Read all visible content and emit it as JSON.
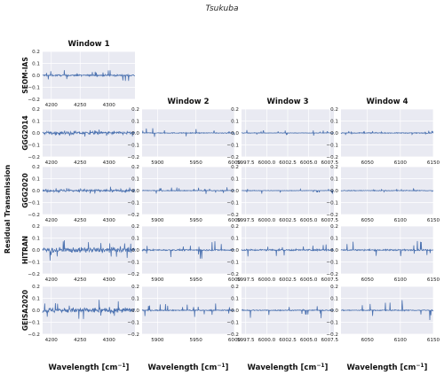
{
  "chart_data": {
    "type": "line",
    "title": "Tsukuba",
    "ylabel": "Residual Transmission",
    "xlabel": "Wavelength [cm$^{-1}$]",
    "xlabel_text": "Wavelength [cm",
    "xlabel_sup": "−1",
    "xlabel_close": "]",
    "ylim": [
      -0.2,
      0.2
    ],
    "yticks": [
      "0.2",
      "0.1",
      "0.0",
      "−0.1",
      "−0.2"
    ],
    "ytick_values": [
      0.2,
      0.1,
      0.0,
      -0.1,
      -0.2
    ],
    "grid": true,
    "series_color": "#4c72b0",
    "panel_bg": "#e9eaf2",
    "columns": [
      {
        "title": "Window 1",
        "xlim": [
          4185,
          4345
        ],
        "xticks": [
          4200,
          4250,
          4300
        ],
        "xtick_labels": [
          "4200",
          "4250",
          "4300"
        ]
      },
      {
        "title": "Window 2",
        "xlim": [
          5880,
          6000
        ],
        "xticks": [
          5900,
          5950,
          6000
        ],
        "xtick_labels": [
          "5900",
          "5950",
          "6000"
        ]
      },
      {
        "title": "Window 3",
        "xlim": [
          5997,
          6008
        ],
        "xticks": [
          5997.5,
          6000.0,
          6002.5,
          6005.0,
          6007.5
        ],
        "xtick_labels": [
          "5997.5",
          "6000.0",
          "6002.5",
          "6005.0",
          "6007.5"
        ]
      },
      {
        "title": "Window 4",
        "xlim": [
          6010,
          6150
        ],
        "xticks": [
          6050,
          6100,
          6150
        ],
        "xtick_labels": [
          "6050",
          "6100",
          "6150"
        ]
      }
    ],
    "rows": [
      {
        "name": "SEOM-IAS",
        "windows": [
          1
        ],
        "noise": [
          0.006
        ],
        "spikes": [
          0.03
        ]
      },
      {
        "name": "GGG2014",
        "windows": [
          1,
          2,
          3,
          4
        ],
        "noise": [
          0.012,
          0.003,
          0.002,
          0.003
        ],
        "spikes": [
          0.02,
          0.025,
          0.015,
          0.012
        ]
      },
      {
        "name": "GGG2020",
        "windows": [
          1,
          2,
          3,
          4
        ],
        "noise": [
          0.01,
          0.003,
          0.002,
          0.003
        ],
        "spikes": [
          0.02,
          0.02,
          0.02,
          0.012
        ]
      },
      {
        "name": "HITRAN",
        "windows": [
          1,
          2,
          3,
          4
        ],
        "noise": [
          0.02,
          0.005,
          0.006,
          0.005
        ],
        "spikes": [
          0.06,
          0.05,
          0.04,
          0.05
        ]
      },
      {
        "name": "GEISA2020",
        "windows": [
          1,
          2,
          3,
          4
        ],
        "noise": [
          0.02,
          0.004,
          0.004,
          0.004
        ],
        "spikes": [
          0.06,
          0.04,
          0.05,
          0.06
        ]
      }
    ]
  }
}
